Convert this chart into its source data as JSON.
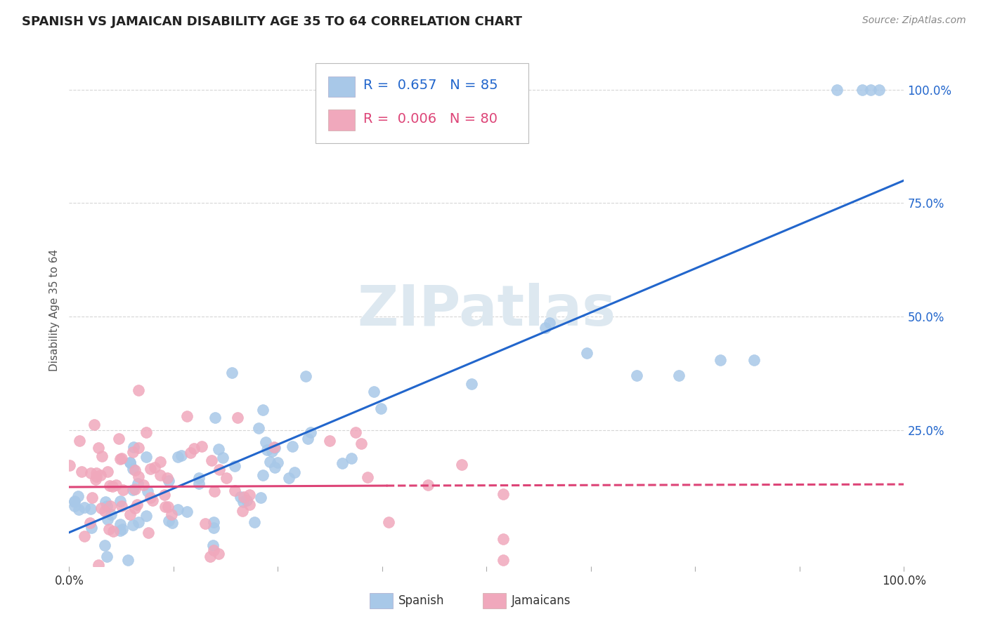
{
  "title": "SPANISH VS JAMAICAN DISABILITY AGE 35 TO 64 CORRELATION CHART",
  "source": "Source: ZipAtlas.com",
  "ylabel": "Disability Age 35 to 64",
  "watermark": "ZIPatlas",
  "legend_spanish_R": 0.657,
  "legend_spanish_N": 85,
  "legend_jamaican_R": 0.006,
  "legend_jamaican_N": 80,
  "ytick_labels": [
    "25.0%",
    "50.0%",
    "75.0%",
    "100.0%"
  ],
  "ytick_values": [
    0.25,
    0.5,
    0.75,
    1.0
  ],
  "spanish_color": "#a8c8e8",
  "jamaican_color": "#f0a8bc",
  "spanish_line_color": "#2266cc",
  "jamaican_line_color": "#dd4477",
  "background_color": "#ffffff",
  "grid_color": "#cccccc",
  "xlim": [
    0.0,
    1.0
  ],
  "ylim": [
    -0.05,
    1.08
  ],
  "title_fontsize": 13,
  "source_fontsize": 10,
  "tick_label_fontsize": 12,
  "legend_fontsize": 14,
  "watermark_text": "ZIPatlas",
  "sp_line_x0": 0.0,
  "sp_line_x1": 1.0,
  "sp_line_y0": 0.025,
  "sp_line_y1": 0.8,
  "jm_line_solid_x0": 0.0,
  "jm_line_solid_x1": 0.38,
  "jm_line_y0": 0.125,
  "jm_line_y1": 0.128,
  "jm_line_dash_x0": 0.38,
  "jm_line_dash_x1": 1.0,
  "jm_line_dash_y0": 0.128,
  "jm_line_dash_y1": 0.131
}
